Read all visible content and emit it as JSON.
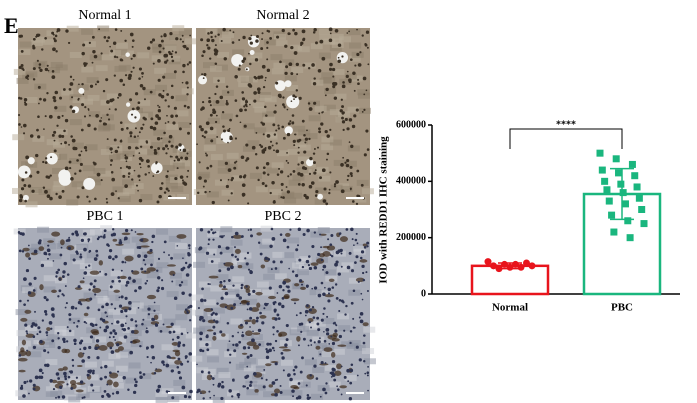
{
  "panel_label": "E",
  "images": [
    {
      "label": "Normal 1"
    },
    {
      "label": "Normal 2"
    },
    {
      "label": "PBC 1"
    },
    {
      "label": "PBC 2"
    }
  ],
  "chart_data": {
    "type": "bar",
    "ylabel": "IOD with REDD1 IHC staining",
    "categories": [
      "Normal",
      "PBC"
    ],
    "series": [
      {
        "colors": [
          "#e8141c",
          "#1ab67e"
        ],
        "values": [
          100000,
          355000
        ],
        "errors": [
          10000,
          90000
        ],
        "points": [
          [
            115000,
            110000,
            105000,
            105000,
            100000,
            100000,
            95000,
            95000,
            90000
          ],
          [
            500000,
            480000,
            460000,
            440000,
            430000,
            420000,
            400000,
            390000,
            380000,
            370000,
            360000,
            340000,
            330000,
            320000,
            300000,
            280000,
            260000,
            250000,
            220000,
            200000
          ]
        ]
      }
    ],
    "significance": "****",
    "ylim": [
      0,
      600000
    ],
    "yticks": [
      0,
      200000,
      400000,
      600000
    ]
  }
}
